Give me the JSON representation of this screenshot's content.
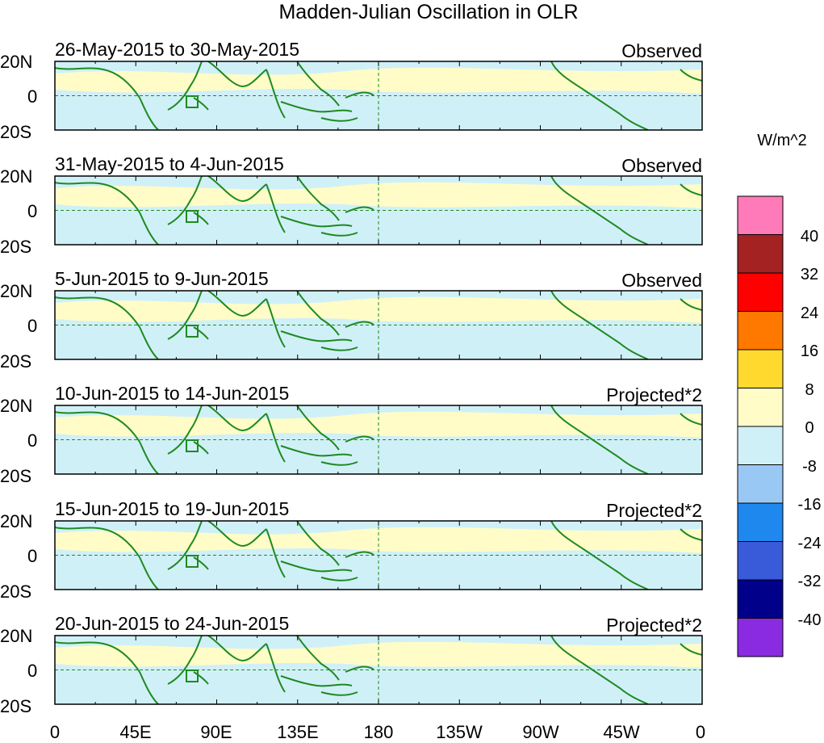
{
  "title": "Madden-Julian Oscillation in OLR",
  "colorbar": {
    "unit_label": "W/m^2",
    "colors": [
      "#8a2be2",
      "#00008b",
      "#3a5bd9",
      "#1e88ef",
      "#9ac8f5",
      "#d0f0f8",
      "#fffcc8",
      "#ffd92e",
      "#ff7800",
      "#ff0000",
      "#a52222",
      "#ff7ab8"
    ],
    "tick_labels": [
      "-40",
      "-32",
      "-24",
      "-16",
      "-8",
      "0",
      "8",
      "16",
      "24",
      "32",
      "40"
    ]
  },
  "axis": {
    "x_tick_labels": [
      "0",
      "45E",
      "90E",
      "135E",
      "180",
      "135W",
      "90W",
      "45W",
      "0"
    ],
    "y_tick_labels": [
      "20N",
      "0",
      "20S"
    ]
  },
  "panels": [
    {
      "date_range": "26-May-2015 to 30-May-2015",
      "kind": "Observed"
    },
    {
      "date_range": "31-May-2015 to 4-Jun-2015",
      "kind": "Observed"
    },
    {
      "date_range": "5-Jun-2015 to 9-Jun-2015",
      "kind": "Observed"
    },
    {
      "date_range": "10-Jun-2015 to 14-Jun-2015",
      "kind": "Projected*2"
    },
    {
      "date_range": "15-Jun-2015 to 19-Jun-2015",
      "kind": "Projected*2"
    },
    {
      "date_range": "20-Jun-2015 to 24-Jun-2015",
      "kind": "Projected*2"
    }
  ],
  "map_colors": {
    "background": "#d0f0f8",
    "coastline": "#1f8a1f",
    "grid": "#1f8a1f"
  }
}
